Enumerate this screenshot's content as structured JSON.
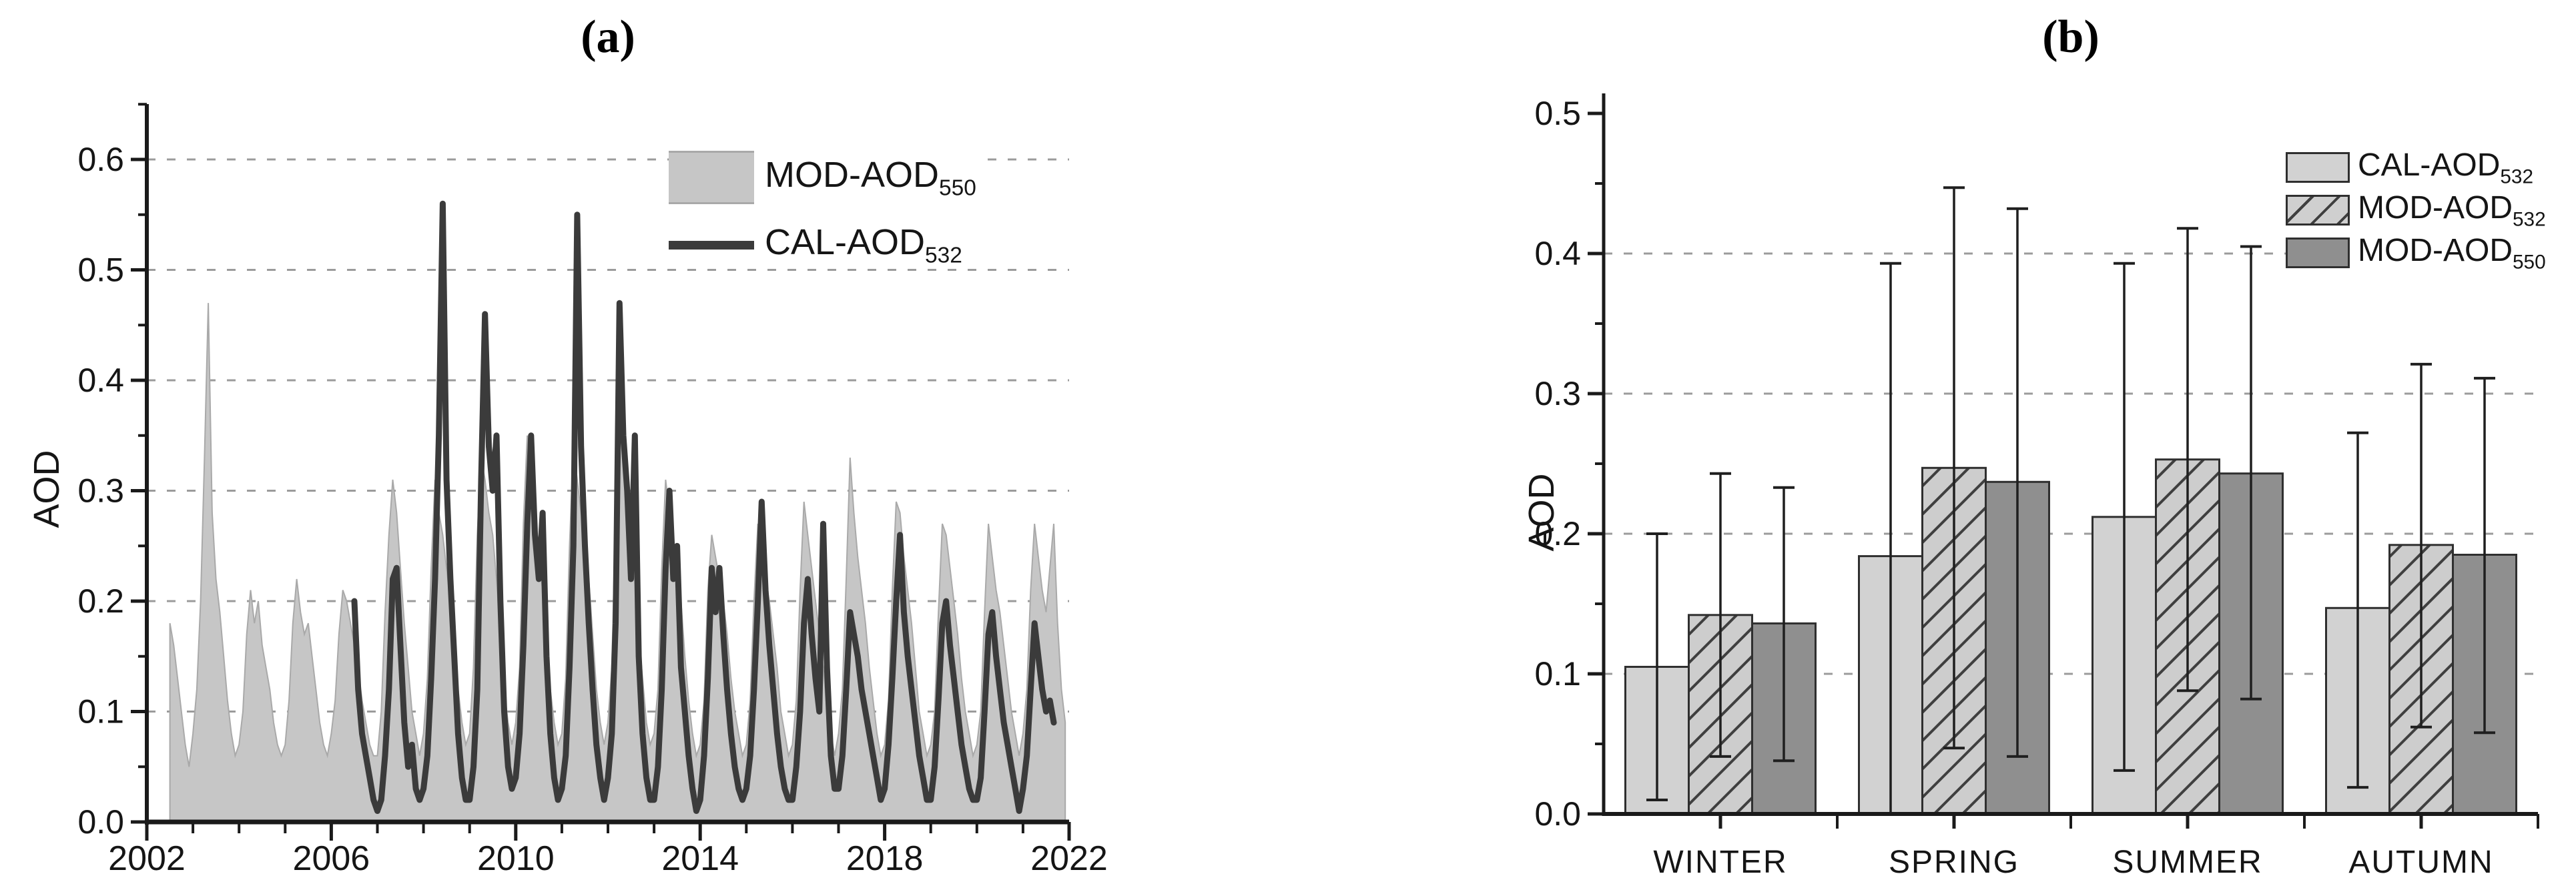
{
  "panels": {
    "a": {
      "title": "(a)",
      "y_axis_label": "AOD",
      "legend": [
        {
          "label_main": "MOD-AOD",
          "label_sub": "550",
          "swatch": "gray-area-swatch"
        },
        {
          "label_main": "CAL-AOD",
          "label_sub": "532",
          "swatch": "dark-line-swatch"
        }
      ]
    },
    "b": {
      "title": "(b)",
      "y_axis_label": "AOD",
      "legend": [
        {
          "label_main": "CAL-AOD",
          "label_sub": "532",
          "swatch": "light-gray-swatch"
        },
        {
          "label_main": "MOD-AOD",
          "label_sub": "532",
          "swatch": "hatched-swatch"
        },
        {
          "label_main": "MOD-AOD",
          "label_sub": "550",
          "swatch": "dark-gray-swatch"
        }
      ]
    }
  },
  "chart_data": [
    {
      "id": "a",
      "type": "area",
      "title": "(a)",
      "xlabel": "",
      "ylabel": "AOD",
      "xlim": [
        2002,
        2022
      ],
      "ylim": [
        0,
        0.65
      ],
      "grid": "horizontal-dotted",
      "legend_position": "top-center-inside",
      "yticks": [
        [
          0.0,
          "0.0"
        ],
        [
          0.1,
          "0.1"
        ],
        [
          0.2,
          "0.2"
        ],
        [
          0.3,
          "0.3"
        ],
        [
          0.4,
          "0.4"
        ],
        [
          0.5,
          "0.5"
        ],
        [
          0.6,
          "0.6"
        ]
      ],
      "y_minor_step": 0.05,
      "xticks": [
        [
          2002,
          "2002"
        ],
        [
          2006,
          "2006"
        ],
        [
          2010,
          "2010"
        ],
        [
          2014,
          "2014"
        ],
        [
          2018,
          "2018"
        ],
        [
          2022,
          "2022"
        ]
      ],
      "x_minor_step": 1,
      "series": [
        {
          "name": "MOD-AOD",
          "sub": "550",
          "style": "area",
          "fill": "#c6c6c6",
          "stroke": "#a9a9a9",
          "x_start": 2002.5,
          "x_step": 0.0833333,
          "values": [
            0.18,
            0.16,
            0.13,
            0.1,
            0.07,
            0.05,
            0.08,
            0.12,
            0.2,
            0.33,
            0.47,
            0.28,
            0.22,
            0.19,
            0.15,
            0.11,
            0.08,
            0.06,
            0.07,
            0.1,
            0.17,
            0.21,
            0.18,
            0.2,
            0.16,
            0.14,
            0.12,
            0.09,
            0.07,
            0.06,
            0.07,
            0.11,
            0.18,
            0.22,
            0.19,
            0.17,
            0.18,
            0.15,
            0.12,
            0.09,
            0.07,
            0.06,
            0.08,
            0.11,
            0.17,
            0.21,
            0.2,
            0.18,
            0.16,
            0.14,
            0.11,
            0.09,
            0.07,
            0.06,
            0.06,
            0.1,
            0.19,
            0.26,
            0.31,
            0.28,
            0.23,
            0.18,
            0.14,
            0.1,
            0.08,
            0.06,
            0.08,
            0.13,
            0.23,
            0.31,
            0.28,
            0.26,
            0.23,
            0.2,
            0.16,
            0.12,
            0.09,
            0.07,
            0.08,
            0.14,
            0.26,
            0.33,
            0.31,
            0.28,
            0.26,
            0.22,
            0.17,
            0.12,
            0.09,
            0.07,
            0.09,
            0.14,
            0.27,
            0.35,
            0.31,
            0.27,
            0.24,
            0.21,
            0.17,
            0.12,
            0.09,
            0.07,
            0.08,
            0.13,
            0.25,
            0.34,
            0.31,
            0.28,
            0.26,
            0.22,
            0.17,
            0.12,
            0.09,
            0.07,
            0.09,
            0.14,
            0.28,
            0.38,
            0.34,
            0.29,
            0.25,
            0.22,
            0.17,
            0.13,
            0.09,
            0.07,
            0.08,
            0.12,
            0.23,
            0.31,
            0.28,
            0.25,
            0.24,
            0.2,
            0.15,
            0.11,
            0.08,
            0.06,
            0.07,
            0.11,
            0.21,
            0.26,
            0.24,
            0.22,
            0.2,
            0.17,
            0.13,
            0.1,
            0.08,
            0.06,
            0.07,
            0.11,
            0.2,
            0.27,
            0.25,
            0.22,
            0.2,
            0.17,
            0.14,
            0.1,
            0.08,
            0.06,
            0.07,
            0.11,
            0.21,
            0.29,
            0.26,
            0.23,
            0.2,
            0.17,
            0.14,
            0.1,
            0.08,
            0.06,
            0.08,
            0.12,
            0.22,
            0.33,
            0.28,
            0.24,
            0.21,
            0.18,
            0.14,
            0.11,
            0.08,
            0.06,
            0.07,
            0.11,
            0.21,
            0.29,
            0.28,
            0.24,
            0.21,
            0.18,
            0.14,
            0.1,
            0.08,
            0.06,
            0.07,
            0.1,
            0.19,
            0.27,
            0.26,
            0.23,
            0.2,
            0.17,
            0.13,
            0.1,
            0.08,
            0.06,
            0.07,
            0.1,
            0.19,
            0.27,
            0.24,
            0.21,
            0.19,
            0.16,
            0.13,
            0.1,
            0.08,
            0.06,
            0.08,
            0.12,
            0.21,
            0.27,
            0.24,
            0.21,
            0.19,
            0.23,
            0.27,
            0.18,
            0.12,
            0.09
          ]
        },
        {
          "name": "CAL-AOD",
          "sub": "532",
          "style": "line",
          "color": "#3b3b3b",
          "width": 9,
          "x_start": 2006.5,
          "x_step": 0.0833333,
          "values": [
            0.2,
            0.12,
            0.08,
            0.06,
            0.04,
            0.02,
            0.01,
            0.02,
            0.06,
            0.12,
            0.22,
            0.23,
            0.16,
            0.09,
            0.05,
            0.07,
            0.03,
            0.02,
            0.03,
            0.06,
            0.13,
            0.22,
            0.35,
            0.56,
            0.31,
            0.22,
            0.15,
            0.08,
            0.04,
            0.02,
            0.02,
            0.05,
            0.12,
            0.31,
            0.46,
            0.34,
            0.3,
            0.35,
            0.2,
            0.1,
            0.05,
            0.03,
            0.04,
            0.08,
            0.16,
            0.27,
            0.35,
            0.26,
            0.22,
            0.28,
            0.15,
            0.08,
            0.04,
            0.02,
            0.03,
            0.06,
            0.14,
            0.25,
            0.55,
            0.34,
            0.25,
            0.18,
            0.12,
            0.07,
            0.04,
            0.02,
            0.04,
            0.08,
            0.18,
            0.47,
            0.35,
            0.3,
            0.22,
            0.35,
            0.15,
            0.08,
            0.04,
            0.02,
            0.02,
            0.05,
            0.12,
            0.23,
            0.3,
            0.22,
            0.25,
            0.14,
            0.1,
            0.06,
            0.03,
            0.01,
            0.02,
            0.06,
            0.13,
            0.23,
            0.19,
            0.23,
            0.17,
            0.12,
            0.08,
            0.05,
            0.03,
            0.02,
            0.03,
            0.06,
            0.12,
            0.2,
            0.29,
            0.21,
            0.16,
            0.12,
            0.08,
            0.05,
            0.03,
            0.02,
            0.02,
            0.05,
            0.1,
            0.18,
            0.22,
            0.17,
            0.13,
            0.1,
            0.27,
            0.14,
            0.06,
            0.03,
            0.03,
            0.06,
            0.12,
            0.19,
            0.17,
            0.15,
            0.12,
            0.1,
            0.08,
            0.06,
            0.04,
            0.02,
            0.03,
            0.07,
            0.13,
            0.2,
            0.26,
            0.19,
            0.15,
            0.12,
            0.09,
            0.06,
            0.04,
            0.02,
            0.02,
            0.05,
            0.11,
            0.18,
            0.2,
            0.16,
            0.13,
            0.1,
            0.07,
            0.05,
            0.03,
            0.02,
            0.02,
            0.04,
            0.1,
            0.17,
            0.19,
            0.15,
            0.12,
            0.09,
            0.07,
            0.05,
            0.03,
            0.01,
            0.03,
            0.06,
            0.12,
            0.18,
            0.15,
            0.12,
            0.1,
            0.11,
            0.09
          ]
        }
      ]
    },
    {
      "id": "b",
      "type": "bar",
      "title": "(b)",
      "xlabel": "",
      "ylabel": "AOD",
      "ylim": [
        0,
        0.5
      ],
      "grid": "horizontal-dotted",
      "grid_values": [
        0.1,
        0.2,
        0.3,
        0.4
      ],
      "legend_position": "top-right-inside",
      "yticks": [
        [
          0.0,
          "0.0"
        ],
        [
          0.1,
          "0.1"
        ],
        [
          0.2,
          "0.2"
        ],
        [
          0.3,
          "0.3"
        ],
        [
          0.4,
          "0.4"
        ],
        [
          0.5,
          "0.5"
        ]
      ],
      "y_minor_step": 0.05,
      "categories": [
        "WINTER",
        "SPRING",
        "SUMMER",
        "AUTUMN"
      ],
      "series": [
        {
          "name": "CAL-AOD",
          "sub": "532",
          "fill": "#d2d2d2",
          "hatch": false,
          "values": [
            0.105,
            0.184,
            0.212,
            0.147
          ],
          "err_low": [
            0.01,
            0.0,
            0.031,
            0.019
          ],
          "err_high": [
            0.2,
            0.393,
            0.393,
            0.272
          ]
        },
        {
          "name": "MOD-AOD",
          "sub": "532",
          "fill": "#cdcdcd",
          "hatch": true,
          "values": [
            0.142,
            0.247,
            0.253,
            0.192
          ],
          "err_low": [
            0.041,
            0.047,
            0.088,
            0.062
          ],
          "err_high": [
            0.243,
            0.447,
            0.418,
            0.321
          ]
        },
        {
          "name": "MOD-AOD",
          "sub": "550",
          "fill": "#8f8f8f",
          "hatch": false,
          "values": [
            0.136,
            0.237,
            0.243,
            0.185
          ],
          "err_low": [
            0.038,
            0.041,
            0.082,
            0.058
          ],
          "err_high": [
            0.233,
            0.432,
            0.405,
            0.311
          ]
        }
      ]
    }
  ]
}
